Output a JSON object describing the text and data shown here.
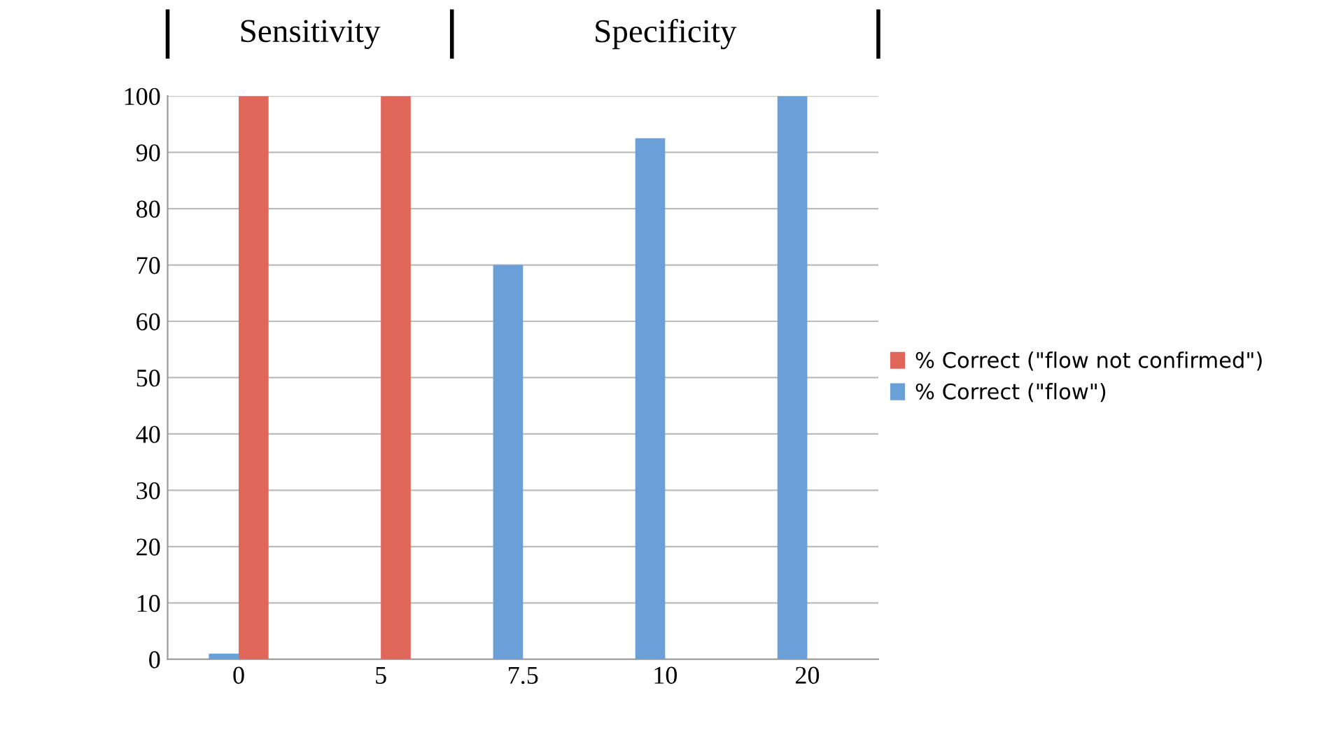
{
  "chart_data": {
    "type": "bar",
    "categories": [
      "0",
      "5",
      "7.5",
      "10",
      "20"
    ],
    "series": [
      {
        "name": "% Correct (\"flow not confirmed\")",
        "color": "#e0665a",
        "values": [
          100,
          100,
          null,
          null,
          null
        ]
      },
      {
        "name": "% Correct (\"flow\")",
        "color": "#6a9fd8",
        "values": [
          1,
          null,
          70,
          92.5,
          100
        ]
      }
    ],
    "ylim": [
      0,
      100
    ],
    "yticks": [
      0,
      10,
      20,
      30,
      40,
      50,
      60,
      70,
      80,
      90,
      100
    ],
    "grid": "y",
    "legend": "right",
    "annotations": [
      "Sensitivity",
      "Specificity"
    ]
  }
}
